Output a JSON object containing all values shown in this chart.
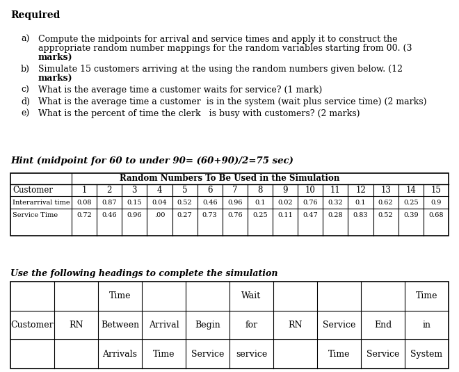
{
  "background_color": "#ffffff",
  "required_label": "Required",
  "items": [
    {
      "label": "a)",
      "lines": [
        {
          "text": "Compute the midpoints for arrival and service times and apply it to construct the",
          "bold": false
        },
        {
          "text": "appropriate random number mappings for the random variables starting from 00. (3",
          "bold": false
        },
        {
          "text": "marks)",
          "bold": true
        }
      ]
    },
    {
      "label": "b)",
      "lines": [
        {
          "text": "Simulate 15 customers arriving at the using the random numbers given below. (12",
          "bold": false
        },
        {
          "text": "marks)",
          "bold": true
        }
      ]
    },
    {
      "label": "c)",
      "lines": [
        {
          "text": "What is the average time a customer waits for service? (1 mark)",
          "bold": false
        }
      ]
    },
    {
      "label": "d)",
      "lines": [
        {
          "text": "What is the average time a customer  is in the system (wait plus service time) (2 marks)",
          "bold": false
        }
      ]
    },
    {
      "label": "e)",
      "lines": [
        {
          "text": "What is the percent of time the clerk   is busy with customers? (2 marks)",
          "bold": false
        }
      ]
    }
  ],
  "hint_text": "Hint (midpoint for 60 to under 90= (60+90)/2=75 sec)",
  "table1_title": "Random Numbers To Be Used in the Simulation",
  "table1_col0": [
    "Customer",
    "Interarrival time",
    "Service Time"
  ],
  "table1_cols": [
    "1",
    "2",
    "3",
    "4",
    "5",
    "6",
    "7",
    "8",
    "9",
    "10",
    "11",
    "12",
    "13",
    "14",
    "15"
  ],
  "table1_interarrival": [
    "0.08",
    "0.87",
    "0.15",
    "0.04",
    "0.52",
    "0.46",
    "0.96",
    "0.1",
    "0.02",
    "0.76",
    "0.32",
    "0.1",
    "0.62",
    "0.25",
    "0.9"
  ],
  "table1_service": [
    "0.72",
    "0.46",
    "0.96",
    ".00",
    "0.27",
    "0.73",
    "0.76",
    "0.25",
    "0.11",
    "0.47",
    "0.28",
    "0.83",
    "0.52",
    "0.39",
    "0.68"
  ],
  "table2_label": "Use the following headings to complete the simulation",
  "table2_h1": [
    "",
    "",
    "Time",
    "",
    "",
    "Wait",
    "",
    "",
    "",
    "Time"
  ],
  "table2_h2": [
    "Customer",
    "RN",
    "Between",
    "Arrival",
    "Begin",
    "for",
    "RN",
    "Service",
    "End",
    "in"
  ],
  "table2_h3": [
    "",
    "",
    "Arrivals",
    "Time",
    "Service",
    "service",
    "",
    "Time",
    "Service",
    "System"
  ]
}
